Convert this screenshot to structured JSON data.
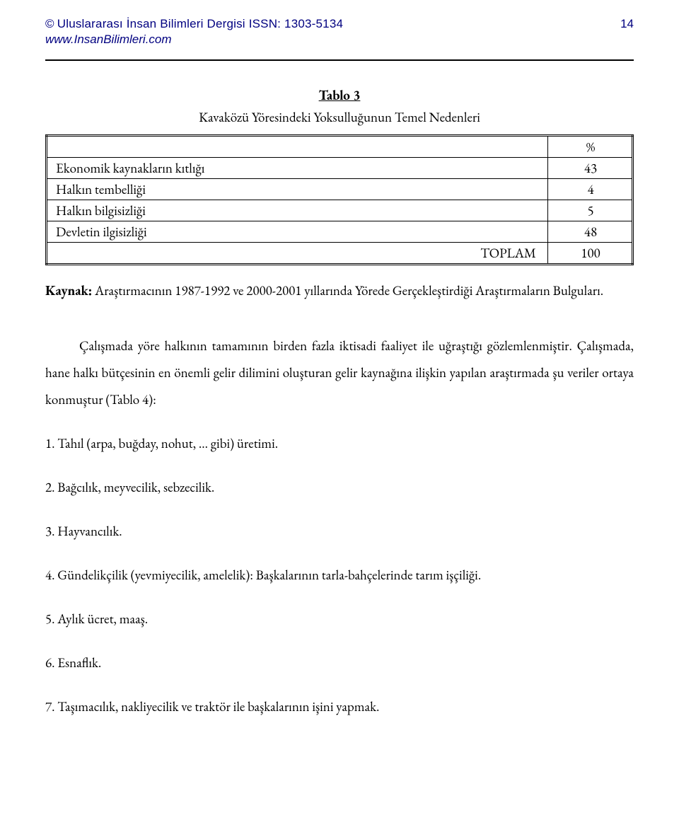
{
  "header": {
    "copyright_symbol": "©",
    "journal_title": "Uluslararası İnsan Bilimleri Dergisi ISSN: 1303-5134",
    "page_number": "14",
    "site_url": "www.InsanBilimleri.com"
  },
  "table": {
    "title": "Tablo 3",
    "caption": "Kavaközü Yöresindeki Yoksulluğunun Temel Nedenleri",
    "header_percent": "%",
    "rows": [
      {
        "label": "Ekonomik kaynakların kıtlığı",
        "value": "43"
      },
      {
        "label": "Halkın tembelliği",
        "value": "4"
      },
      {
        "label": "Halkın bilgisizliği",
        "value": "5"
      },
      {
        "label": "Devletin ilgisizliği",
        "value": "48"
      }
    ],
    "total_label": "TOPLAM",
    "total_value": "100"
  },
  "source_note": {
    "label": "Kaynak:",
    "text": " Araştırmacının 1987-1992 ve 2000-2001 yıllarında Yörede Gerçekleştirdiği Araştırmaların Bulguları."
  },
  "paragraph": "Çalışmada yöre halkının tamamının birden fazla iktisadi faaliyet ile uğraştığı gözlemlenmiştir. Çalışmada, hane halkı bütçesinin en önemli gelir dilimini oluşturan gelir kaynağına ilişkin yapılan araştırmada şu veriler ortaya konmuştur (Tablo 4):",
  "list": [
    "1.  Tahıl (arpa, buğday, nohut, ... gibi) üretimi.",
    "2.  Bağcılık, meyvecilik, sebzecilik.",
    "3.  Hayvancılık.",
    "4.  Gündelikçilik (yevmiyecilik, amelelik): Başkalarının tarla-bahçelerinde tarım işçiliği.",
    "5.  Aylık ücret, maaş.",
    "6.  Esnaflık.",
    "7.  Taşımacılık, nakliyecilik ve traktör ile başkalarının işini yapmak."
  ]
}
